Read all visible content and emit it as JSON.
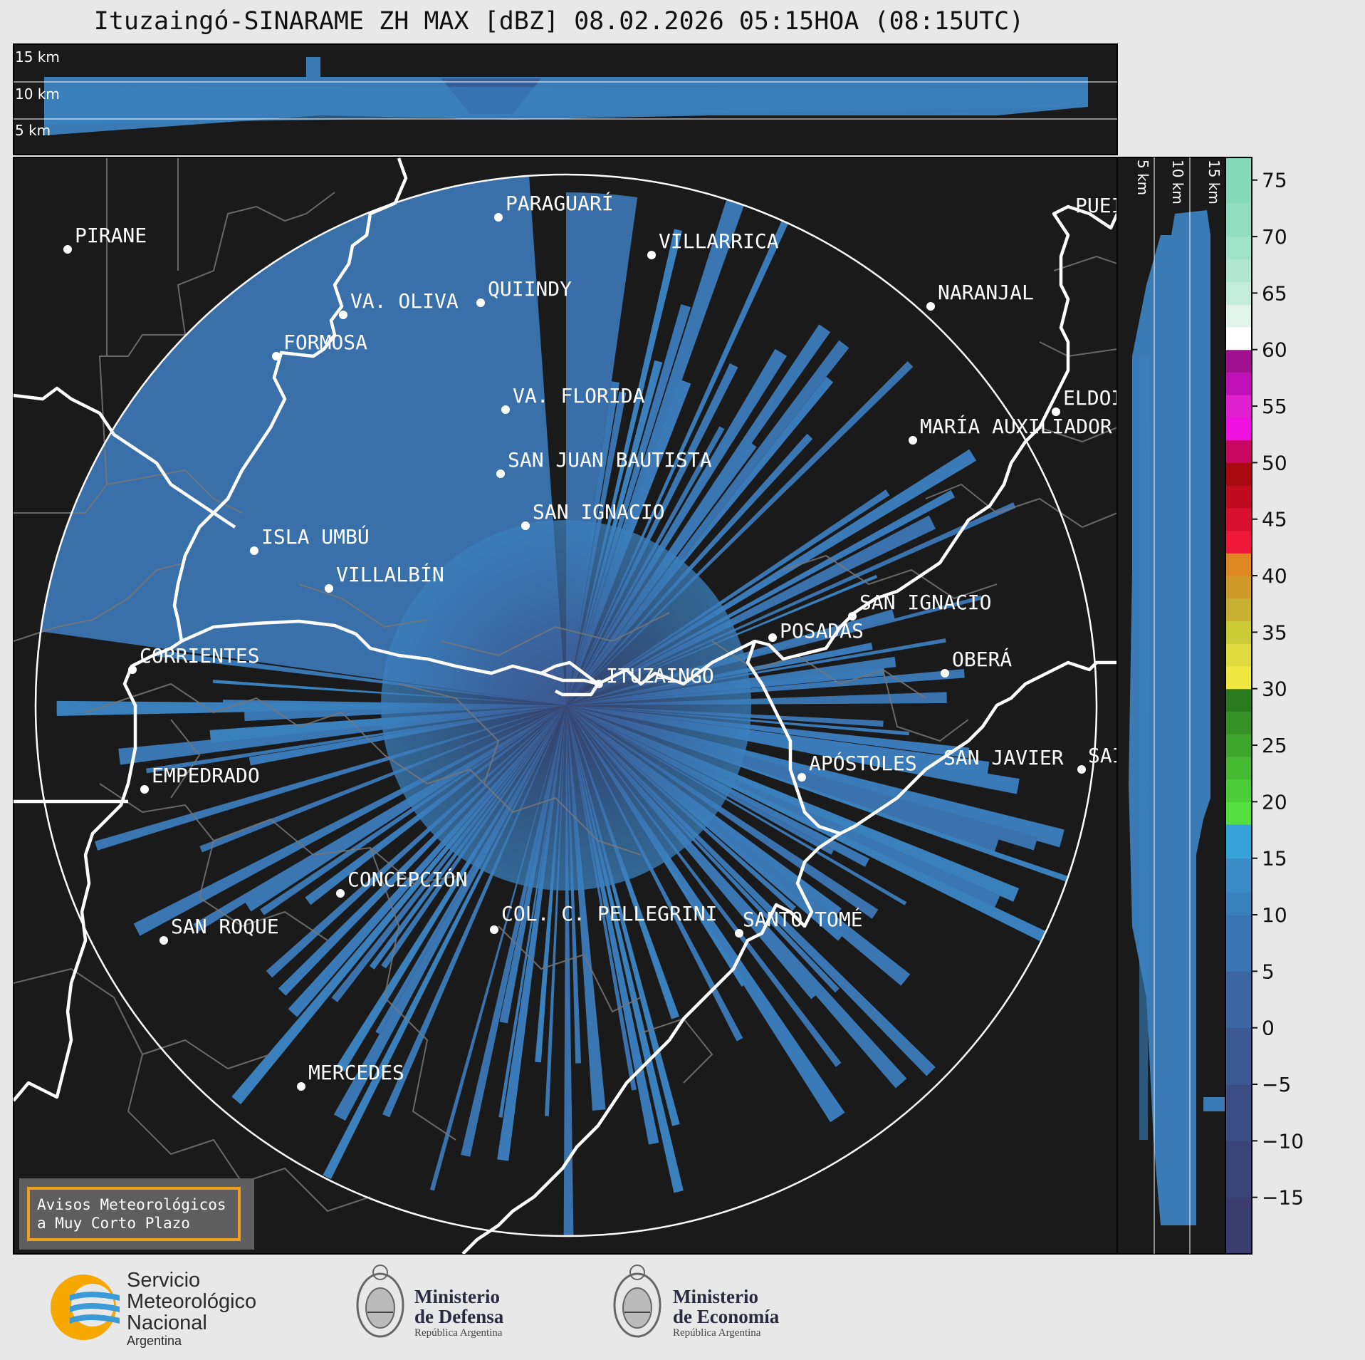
{
  "title": "Ituzaingó-SINARAME ZH MAX [dBZ] 08.02.2026 05:15HOA (08:15UTC)",
  "top_panel": {
    "height_labels": [
      "15 km",
      "10 km",
      "5 km"
    ]
  },
  "side_panel": {
    "height_labels": [
      "5 km",
      "10 km",
      "15 km"
    ]
  },
  "colorbar": {
    "ticks": [
      "75",
      "70",
      "65",
      "60",
      "55",
      "50",
      "45",
      "40",
      "35",
      "30",
      "25",
      "20",
      "15",
      "10",
      "5",
      "0",
      "−5",
      "−10",
      "−15"
    ],
    "tick_values": [
      75,
      70,
      65,
      60,
      55,
      50,
      45,
      40,
      35,
      30,
      25,
      20,
      15,
      10,
      5,
      0,
      -5,
      -10,
      -15
    ],
    "range": [
      -20,
      77
    ],
    "unit": "dBZ"
  },
  "map": {
    "radar_site": "ITUZAINGÓ",
    "cities": [
      {
        "name": "PIRANE"
      },
      {
        "name": "PARAGUARÍ"
      },
      {
        "name": "VILLARRICA"
      },
      {
        "name": "QUIINDY"
      },
      {
        "name": "VA. OLIVA"
      },
      {
        "name": "FORMOSA"
      },
      {
        "name": "NARANJAL"
      },
      {
        "name": "PUEI"
      },
      {
        "name": "VA. FLORIDA"
      },
      {
        "name": "ELDOI"
      },
      {
        "name": "MARÍA AUXILIADOR"
      },
      {
        "name": "SAN JUAN BAUTISTA"
      },
      {
        "name": "SAN IGNACIO"
      },
      {
        "name": "ISLA UMBÚ"
      },
      {
        "name": "VILLALBÍN"
      },
      {
        "name": "SAN IGNACIO"
      },
      {
        "name": "POSADAS"
      },
      {
        "name": "CORRIENTES"
      },
      {
        "name": "ITUZAINGÓ"
      },
      {
        "name": "OBERÁ"
      },
      {
        "name": "APÓSTOLES"
      },
      {
        "name": "SAN JAVIER"
      },
      {
        "name": "SAI"
      },
      {
        "name": "EMPEDRADO"
      },
      {
        "name": "CONCEPCIÓN"
      },
      {
        "name": "SAN ROQUE"
      },
      {
        "name": "COL. C. PELLEGRINI"
      },
      {
        "name": "SANTO TOMÉ"
      },
      {
        "name": "MERCEDES"
      }
    ]
  },
  "badge": {
    "line1": "Avisos Meteorológicos",
    "line2": "a Muy Corto Plazo"
  },
  "logos": {
    "smn": {
      "line1": "Servicio",
      "line2": "Meteorológico",
      "line3": "Nacional",
      "sub": "Argentina"
    },
    "defensa": {
      "line1": "Ministerio",
      "line2": "de Defensa",
      "sub": "República Argentina"
    },
    "economia": {
      "line1": "Ministerio",
      "line2": "de Economía",
      "sub": "República Argentina"
    }
  },
  "colors": {
    "background": "#1a1a1a",
    "echo_main": "#3a78b0",
    "echo_inner": "#3a5a90",
    "range_ring": "#ffffff",
    "border": "#ffffff",
    "badge_border": "#f0a020"
  }
}
